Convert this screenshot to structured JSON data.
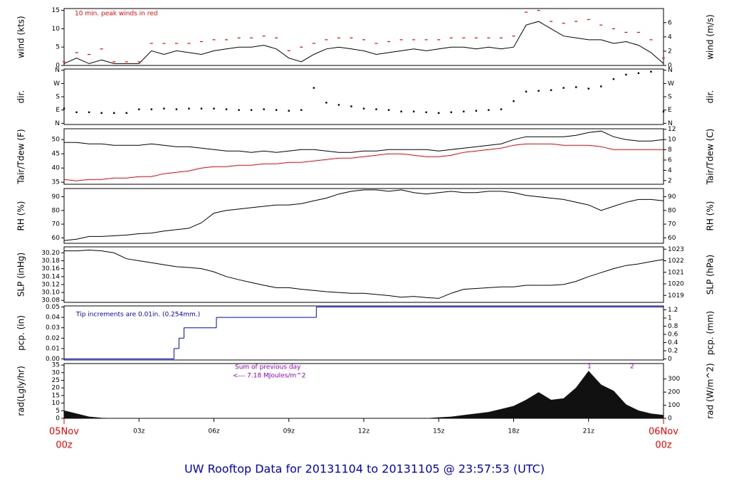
{
  "title": "UW Rooftop Data for 20131104  to  20131105 @ 23:57:53  (UTC)",
  "chart_data": [
    {
      "type": "line",
      "ylabel": "wind (kts)",
      "y2label": "wind (m/s)",
      "xlim": [
        0,
        24
      ],
      "ylim": [
        0,
        15.5
      ],
      "yticks": [
        0,
        5,
        10,
        15
      ],
      "y2lim": [
        0,
        7.97
      ],
      "y2ticks": [
        0,
        2,
        4,
        6
      ],
      "annotations": [
        "10 min. peak winds in red"
      ],
      "annotation_color": "#ff0000",
      "x": [
        0,
        0.5,
        1,
        1.5,
        2,
        2.5,
        3,
        3.5,
        4,
        4.5,
        5,
        5.5,
        6,
        6.5,
        7,
        7.5,
        8,
        8.5,
        9,
        9.5,
        10,
        10.5,
        11,
        11.5,
        12,
        12.5,
        13,
        13.5,
        14,
        14.5,
        15,
        15.5,
        16,
        16.5,
        17,
        17.5,
        18,
        18.5,
        19,
        19.5,
        20,
        20.5,
        21,
        21.5,
        22,
        22.5,
        23,
        23.5,
        24
      ],
      "series": [
        {
          "name": "wind",
          "type": "line",
          "color": "#000000",
          "values": [
            0.5,
            2,
            0.5,
            1.5,
            0.5,
            0.5,
            0.5,
            4,
            3,
            4,
            3.5,
            3,
            4,
            4.5,
            5,
            5,
            5.5,
            4.5,
            2,
            1,
            3,
            4.5,
            5,
            4.5,
            4,
            3,
            3.5,
            4,
            4.5,
            4,
            4.5,
            5,
            5,
            4.5,
            5,
            4.5,
            5,
            11,
            12,
            10,
            8,
            7.5,
            7,
            7,
            6,
            6.5,
            5.5,
            3.5,
            0.5
          ]
        },
        {
          "name": "peak",
          "type": "dash",
          "color": "#ff0000",
          "values": [
            1,
            3.5,
            3,
            4.5,
            1,
            1,
            1,
            6,
            6,
            6,
            6,
            6.5,
            7,
            7,
            7.5,
            7.5,
            8,
            7.5,
            4,
            5,
            6,
            7,
            7.5,
            7.5,
            7,
            6,
            6.5,
            7,
            7,
            7,
            7,
            7.5,
            7.5,
            7.5,
            7.5,
            7.5,
            8,
            14.5,
            15,
            12,
            11.5,
            12,
            12.5,
            11,
            10,
            9,
            9,
            7,
            2
          ]
        }
      ]
    },
    {
      "type": "scatter",
      "ylabel": "dir.",
      "y2label": "dir.",
      "xlim": [
        0,
        24
      ],
      "ylim": [
        -8,
        368
      ],
      "yticks": [
        {
          "value": 0,
          "label": "N"
        },
        {
          "value": 90,
          "label": "E"
        },
        {
          "value": 180,
          "label": "S"
        },
        {
          "value": 270,
          "label": "W"
        },
        {
          "value": 360,
          "label": "N"
        }
      ],
      "y2lim": [
        -8,
        368
      ],
      "y2ticks": [
        {
          "value": 0,
          "label": "N"
        },
        {
          "value": 90,
          "label": "E"
        },
        {
          "value": 180,
          "label": "S"
        },
        {
          "value": 270,
          "label": "W"
        },
        {
          "value": 360,
          "label": "N"
        }
      ],
      "x": [
        0,
        0.5,
        1,
        1.5,
        2,
        2.5,
        3,
        3.5,
        4,
        4.5,
        5,
        5.5,
        6,
        6.5,
        7,
        7.5,
        8,
        8.5,
        9,
        9.5,
        10,
        10.5,
        11,
        11.5,
        12,
        12.5,
        13,
        13.5,
        14,
        14.5,
        15,
        15.5,
        16,
        16.5,
        17,
        17.5,
        18,
        18.5,
        19,
        19.5,
        20,
        20.5,
        21,
        21.5,
        22,
        22.5,
        23,
        23.5,
        24
      ],
      "series": [
        {
          "name": "dir",
          "type": "dot",
          "color": "#000000",
          "values": [
            100,
            75,
            75,
            70,
            70,
            70,
            95,
            95,
            100,
            95,
            100,
            100,
            100,
            95,
            90,
            90,
            95,
            90,
            85,
            90,
            240,
            140,
            125,
            115,
            100,
            95,
            90,
            80,
            80,
            75,
            70,
            75,
            80,
            85,
            90,
            95,
            150,
            215,
            220,
            225,
            240,
            245,
            235,
            250,
            300,
            330,
            340,
            350,
            80
          ]
        }
      ]
    },
    {
      "type": "line",
      "ylabel": "Tair/Tdew (F)",
      "y2label": "Tair/Tdew (C)",
      "xlim": [
        0,
        24
      ],
      "ylim": [
        34.3,
        53.8
      ],
      "yticks": [
        35,
        40,
        45,
        50
      ],
      "y2lim": [
        1.28,
        12.1
      ],
      "y2ticks": [
        2,
        4,
        6,
        8,
        10,
        12
      ],
      "x": [
        0,
        0.5,
        1,
        1.5,
        2,
        2.5,
        3,
        3.5,
        4,
        4.5,
        5,
        5.5,
        6,
        6.5,
        7,
        7.5,
        8,
        8.5,
        9,
        9.5,
        10,
        10.5,
        11,
        11.5,
        12,
        12.5,
        13,
        13.5,
        14,
        14.5,
        15,
        15.5,
        16,
        16.5,
        17,
        17.5,
        18,
        18.5,
        19,
        19.5,
        20,
        20.5,
        21,
        21.5,
        22,
        22.5,
        23,
        23.5,
        24
      ],
      "series": [
        {
          "name": "Tair",
          "type": "line",
          "color": "#000000",
          "values": [
            49,
            49,
            48.5,
            48.5,
            48,
            48,
            48,
            48.5,
            48,
            47.5,
            47.5,
            47,
            46.5,
            46,
            46,
            45.5,
            46,
            45.5,
            46,
            46.5,
            46.5,
            46,
            45.5,
            45.5,
            46,
            46,
            46.5,
            46.5,
            46.5,
            46.5,
            46,
            46.5,
            47,
            47.5,
            48,
            48.5,
            50,
            51,
            51,
            51,
            51,
            51.5,
            52.5,
            53,
            51,
            50,
            49.5,
            49.5,
            50
          ]
        },
        {
          "name": "Tdew",
          "type": "line",
          "color": "#ff0000",
          "values": [
            36,
            35.5,
            36,
            36,
            36.5,
            36.5,
            37,
            37,
            38,
            38.5,
            39,
            40,
            40.5,
            40.5,
            41,
            41,
            41.5,
            41.5,
            42,
            42,
            42.5,
            43,
            43.5,
            43.5,
            44,
            44.5,
            45,
            45,
            44.5,
            44,
            44,
            44.5,
            45.5,
            46,
            46.5,
            47,
            48,
            48.5,
            48.5,
            48.5,
            48,
            48,
            48,
            47.5,
            46.5,
            46.5,
            46.5,
            46.5,
            46.5
          ]
        }
      ]
    },
    {
      "type": "line",
      "ylabel": "RH (%)",
      "y2label": "RH (%)",
      "xlim": [
        0,
        24
      ],
      "ylim": [
        56,
        96
      ],
      "yticks": [
        60,
        70,
        80,
        90
      ],
      "y2lim": [
        56,
        96
      ],
      "y2ticks": [
        60,
        70,
        80,
        90
      ],
      "x": [
        0,
        0.5,
        1,
        1.5,
        2,
        2.5,
        3,
        3.5,
        4,
        4.5,
        5,
        5.5,
        6,
        6.5,
        7,
        7.5,
        8,
        8.5,
        9,
        9.5,
        10,
        10.5,
        11,
        11.5,
        12,
        12.5,
        13,
        13.5,
        14,
        14.5,
        15,
        15.5,
        16,
        16.5,
        17,
        17.5,
        18,
        18.5,
        19,
        19.5,
        20,
        20.5,
        21,
        21.5,
        22,
        22.5,
        23,
        23.5,
        24
      ],
      "series": [
        {
          "name": "RH",
          "type": "line",
          "color": "#000000",
          "values": [
            58,
            59,
            61,
            61,
            61.5,
            62,
            63,
            63.5,
            65,
            66,
            67,
            71,
            78,
            80,
            81,
            82,
            83,
            84,
            84,
            85,
            87,
            89,
            92,
            94,
            95,
            95,
            94,
            95,
            93,
            92,
            93,
            94,
            93,
            93,
            94,
            94,
            93,
            91,
            90,
            89,
            88,
            86,
            84,
            80,
            83,
            86,
            88,
            88,
            87
          ]
        }
      ]
    },
    {
      "type": "line",
      "ylabel": "SLP (inHg)",
      "y2label": "SLP (hPa)",
      "xlim": [
        0,
        24
      ],
      "ylim": [
        30.075,
        30.215
      ],
      "yticks": [
        {
          "value": 30.08,
          "label": "30.08"
        },
        {
          "value": 30.1,
          "label": "30.10"
        },
        {
          "value": 30.12,
          "label": "30.12"
        },
        {
          "value": 30.14,
          "label": "30.14"
        },
        {
          "value": 30.16,
          "label": "30.16"
        },
        {
          "value": 30.18,
          "label": "30.18"
        },
        {
          "value": 30.2,
          "label": "30.20"
        }
      ],
      "y2lim": [
        1018.4,
        1023.2
      ],
      "y2ticks": [
        1019,
        1020,
        1021,
        1022,
        1023
      ],
      "x": [
        0,
        0.5,
        1,
        1.5,
        2,
        2.5,
        3,
        3.5,
        4,
        4.5,
        5,
        5.5,
        6,
        6.5,
        7,
        7.5,
        8,
        8.5,
        9,
        9.5,
        10,
        10.5,
        11,
        11.5,
        12,
        12.5,
        13,
        13.5,
        14,
        14.5,
        15,
        15.5,
        16,
        16.5,
        17,
        17.5,
        18,
        18.5,
        19,
        19.5,
        20,
        20.5,
        21,
        21.5,
        22,
        22.5,
        23,
        23.5,
        24
      ],
      "series": [
        {
          "name": "SLP",
          "type": "line",
          "color": "#000000",
          "values": [
            30.205,
            30.205,
            30.207,
            30.205,
            30.2,
            30.185,
            30.18,
            30.175,
            30.17,
            30.165,
            30.163,
            30.16,
            30.152,
            30.14,
            30.132,
            30.125,
            30.118,
            30.112,
            30.112,
            30.108,
            30.105,
            30.102,
            30.1,
            30.098,
            30.098,
            30.095,
            30.092,
            30.088,
            30.09,
            30.087,
            30.085,
            30.098,
            30.108,
            30.11,
            30.112,
            30.114,
            30.114,
            30.118,
            30.118,
            30.118,
            30.12,
            30.128,
            30.14,
            30.15,
            30.16,
            30.168,
            30.172,
            30.178,
            30.183
          ]
        }
      ]
    },
    {
      "type": "line",
      "ylabel": "pcp. (in)",
      "y2label": "pcp. (mm)",
      "xlim": [
        0,
        24
      ],
      "ylim": [
        -0.001,
        0.051
      ],
      "yticks": [
        {
          "value": 0,
          "label": "0.00"
        },
        {
          "value": 0.01,
          "label": "0.01"
        },
        {
          "value": 0.02,
          "label": "0.02"
        },
        {
          "value": 0.03,
          "label": "0.03"
        },
        {
          "value": 0.04,
          "label": "0.04"
        },
        {
          "value": 0.05,
          "label": "0.05"
        }
      ],
      "y2lim": [
        -0.025,
        1.295
      ],
      "y2ticks": [
        0,
        0.2,
        0.4,
        0.6,
        0.8,
        1,
        1.2
      ],
      "annotations": [
        "Tip increments are 0.01in. (0.254mm.)"
      ],
      "annotation_color": "#0000cc",
      "x": [
        0,
        4.4,
        4.6,
        4.8,
        6.1,
        10.1,
        24
      ],
      "series": [
        {
          "name": "pcp",
          "type": "step",
          "color": "#0000ff",
          "values": [
            0,
            0.01,
            0.02,
            0.03,
            0.04,
            0.05,
            0.05
          ]
        }
      ]
    },
    {
      "type": "line",
      "ylabel": "rad(Lgly/hr)",
      "y2label": "rad (W/m^2)",
      "xlim": [
        0,
        24
      ],
      "ylim": [
        0,
        36
      ],
      "yticks": [
        0,
        5,
        10,
        15,
        20,
        25,
        30,
        35
      ],
      "y2lim": [
        0,
        418
      ],
      "y2ticks": [
        0,
        100,
        200,
        300
      ],
      "annotations": [
        "Sum of previous day",
        "<--- 7.18 MJoules/m^2",
        "1",
        "2"
      ],
      "annotation_color": "#9900cc",
      "xticks": [
        {
          "value": 3,
          "label": "03z"
        },
        {
          "value": 6,
          "label": "06z"
        },
        {
          "value": 9,
          "label": "09z"
        },
        {
          "value": 12,
          "label": "12z"
        },
        {
          "value": 15,
          "label": "15z"
        },
        {
          "value": 18,
          "label": "18z"
        },
        {
          "value": 21,
          "label": "21z"
        }
      ],
      "date_labels": [
        {
          "value": 0,
          "date": "05Nov",
          "hour": "00z"
        },
        {
          "value": 24,
          "date": "06Nov",
          "hour": "00z"
        }
      ],
      "x": [
        0,
        0.5,
        1,
        1.5,
        2,
        2.5,
        3,
        3.5,
        4,
        4.5,
        5,
        5.5,
        6,
        6.5,
        7,
        7.5,
        8,
        8.5,
        9,
        9.5,
        10,
        10.5,
        11,
        11.5,
        12,
        12.5,
        13,
        13.5,
        14,
        14.5,
        15,
        15.5,
        16,
        16.5,
        17,
        17.5,
        18,
        18.5,
        19,
        19.5,
        20,
        20.5,
        21,
        21.5,
        22,
        22.5,
        23,
        23.5,
        24
      ],
      "series": [
        {
          "name": "rad",
          "type": "area",
          "color": "#111111",
          "values": [
            5,
            3,
            1,
            0.2,
            0,
            0,
            0,
            0,
            0,
            0,
            0,
            0,
            0,
            0,
            0,
            0,
            0,
            0,
            0,
            0,
            0,
            0,
            0,
            0,
            0,
            0,
            0,
            0,
            0,
            0,
            0.5,
            1,
            2,
            3,
            4,
            6,
            8,
            12,
            17,
            12,
            13,
            20,
            31,
            22,
            18,
            9,
            5,
            3,
            2
          ]
        }
      ]
    }
  ]
}
